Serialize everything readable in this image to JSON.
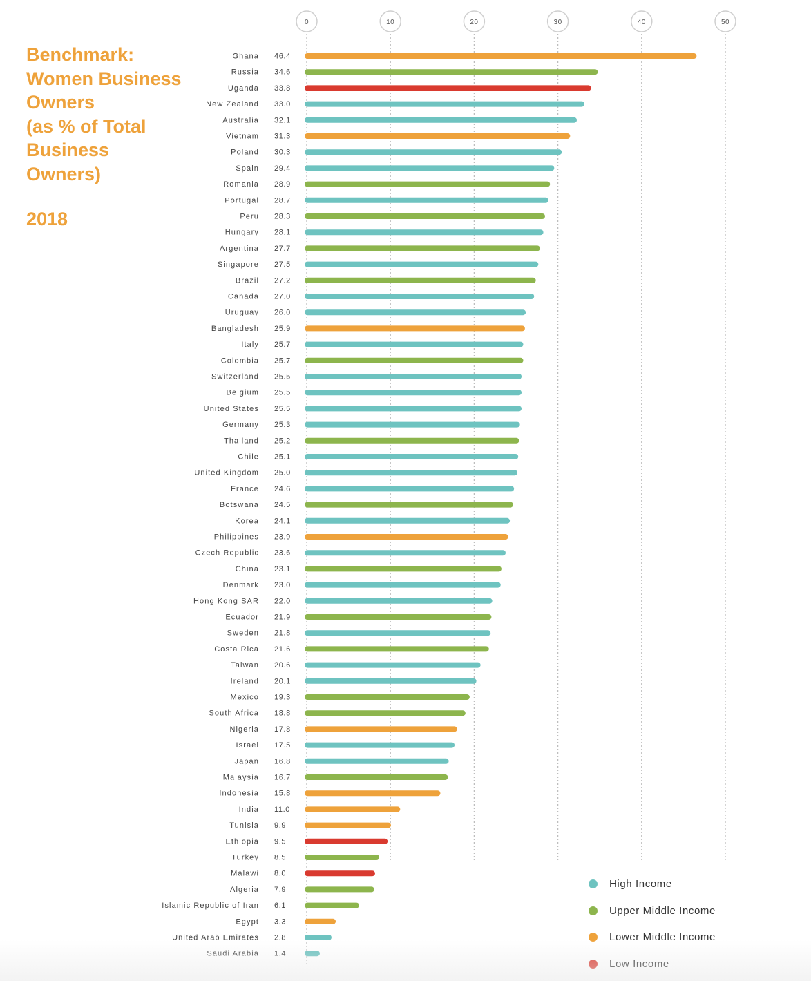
{
  "title_lines": [
    "Benchmark:",
    "Women Business",
    "Owners",
    "(as % of Total",
    "Business",
    "Owners)"
  ],
  "year": "2018",
  "colors": {
    "high_income": "#6ec3c0",
    "upper_middle_income": "#8db54d",
    "lower_middle_income": "#eea23b",
    "low_income": "#d93a2f"
  },
  "legend": [
    {
      "label": "High Income",
      "key": "high_income"
    },
    {
      "label": "Upper Middle Income",
      "key": "upper_middle_income"
    },
    {
      "label": "Lower Middle Income",
      "key": "lower_middle_income"
    },
    {
      "label": "Low Income",
      "key": "low_income"
    }
  ],
  "chart_data": {
    "type": "bar",
    "orientation": "horizontal",
    "title": "Benchmark: Women Business Owners (as % of Total Business Owners) 2018",
    "xlim": [
      0,
      50
    ],
    "x_ticks": [
      "0",
      "10",
      "20",
      "30",
      "40",
      "50"
    ],
    "grid": "vertical dotted",
    "legend_position": "bottom-right",
    "categories": [
      "Ghana",
      "Russia",
      "Uganda",
      "New Zealand",
      "Australia",
      "Vietnam",
      "Poland",
      "Spain",
      "Romania",
      "Portugal",
      "Peru",
      "Hungary",
      "Argentina",
      "Singapore",
      "Brazil",
      "Canada",
      "Uruguay",
      "Bangladesh",
      "Italy",
      "Colombia",
      "Switzerland",
      "Belgium",
      "United States",
      "Germany",
      "Thailand",
      "Chile",
      "United Kingdom",
      "France",
      "Botswana",
      "Korea",
      "Philippines",
      "Czech Republic",
      "China",
      "Denmark",
      "Hong Kong SAR",
      "Ecuador",
      "Sweden",
      "Costa Rica",
      "Taiwan",
      "Ireland",
      "Mexico",
      "South Africa",
      "Nigeria",
      "Israel",
      "Japan",
      "Malaysia",
      "Indonesia",
      "India",
      "Tunisia",
      "Ethiopia",
      "Turkey",
      "Malawi",
      "Algeria",
      "Islamic Republic of Iran",
      "Egypt",
      "United Arab Emirates",
      "Saudi Arabia"
    ],
    "value_labels": [
      "46.4",
      "34.6",
      "33.8",
      "33.0",
      "32.1",
      "31.3",
      "30.3",
      "29.4",
      "28.9",
      "28.7",
      "28.3",
      "28.1",
      "27.7",
      "27.5",
      "27.2",
      "27.0",
      "26.0",
      "25.9",
      "25.7",
      "25.7",
      "25.5",
      "25.5",
      "25.5",
      "25.3",
      "25.2",
      "25.1",
      "25.0",
      "24.6",
      "24.5",
      "24.1",
      "23.9",
      "23.6",
      "23.1",
      "23.0",
      "22.0",
      "21.9",
      "21.8",
      "21.6",
      "20.6",
      "20.1",
      "19.3",
      "18.8",
      "17.8",
      "17.5",
      "16.8",
      "16.7",
      "15.8",
      "11.0",
      "9.9",
      "9.5",
      "8.5",
      "8.0",
      "7.9",
      "6.1",
      "3.3",
      "2.8",
      "1.4"
    ],
    "values": [
      46.4,
      34.6,
      33.8,
      33.0,
      32.1,
      31.3,
      30.3,
      29.4,
      28.9,
      28.7,
      28.3,
      28.1,
      27.7,
      27.5,
      27.2,
      27.0,
      26.0,
      25.9,
      25.7,
      25.7,
      25.5,
      25.5,
      25.5,
      25.3,
      25.2,
      25.1,
      25.0,
      24.6,
      24.5,
      24.1,
      23.9,
      23.6,
      23.1,
      23.0,
      22.0,
      21.9,
      21.8,
      21.6,
      20.6,
      20.1,
      19.3,
      18.8,
      17.8,
      17.5,
      16.8,
      16.7,
      15.8,
      11.0,
      9.9,
      9.5,
      8.5,
      8.0,
      7.9,
      6.1,
      3.3,
      2.8,
      1.4
    ],
    "income_group": [
      "lower_middle_income",
      "upper_middle_income",
      "low_income",
      "high_income",
      "high_income",
      "lower_middle_income",
      "high_income",
      "high_income",
      "upper_middle_income",
      "high_income",
      "upper_middle_income",
      "high_income",
      "upper_middle_income",
      "high_income",
      "upper_middle_income",
      "high_income",
      "high_income",
      "lower_middle_income",
      "high_income",
      "upper_middle_income",
      "high_income",
      "high_income",
      "high_income",
      "high_income",
      "upper_middle_income",
      "high_income",
      "high_income",
      "high_income",
      "upper_middle_income",
      "high_income",
      "lower_middle_income",
      "high_income",
      "upper_middle_income",
      "high_income",
      "high_income",
      "upper_middle_income",
      "high_income",
      "upper_middle_income",
      "high_income",
      "high_income",
      "upper_middle_income",
      "upper_middle_income",
      "lower_middle_income",
      "high_income",
      "high_income",
      "upper_middle_income",
      "lower_middle_income",
      "lower_middle_income",
      "lower_middle_income",
      "low_income",
      "upper_middle_income",
      "low_income",
      "upper_middle_income",
      "upper_middle_income",
      "lower_middle_income",
      "high_income",
      "high_income"
    ]
  }
}
